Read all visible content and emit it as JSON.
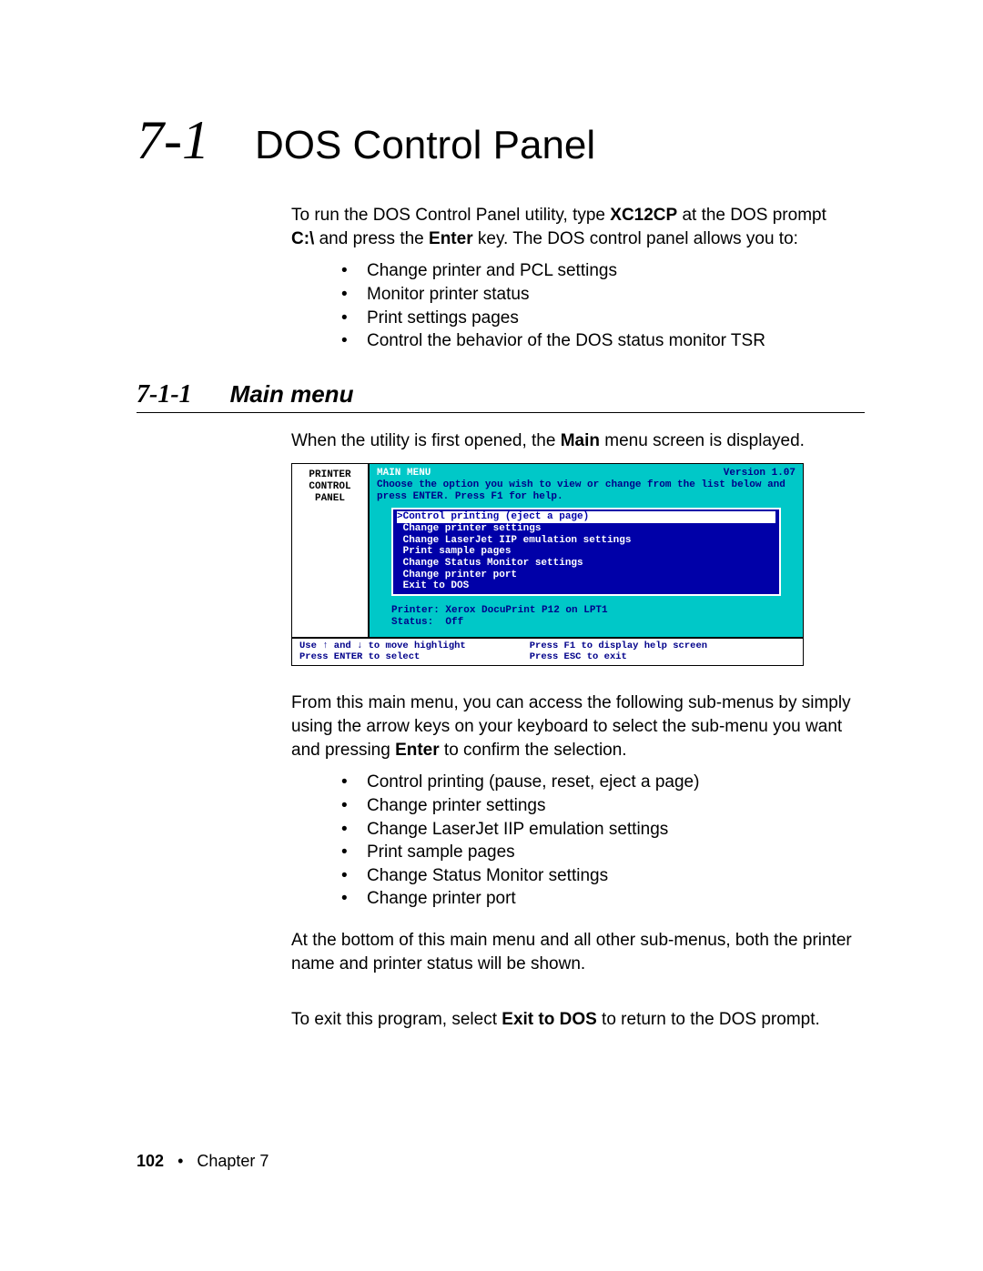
{
  "heading": {
    "num": "7-1",
    "title": "DOS Control Panel"
  },
  "intro": {
    "line1a": "To run the DOS Control Panel utility, type ",
    "line1b": "XC12CP",
    "line1c": " at the DOS prompt ",
    "line2a": "C:\\",
    "line2b": " and press the ",
    "line2c": "Enter",
    "line2d": " key. The DOS control panel allows you to:"
  },
  "bullets1": [
    "Change printer and PCL settings",
    "Monitor printer status",
    "Print settings pages",
    "Control the behavior of the DOS status monitor TSR"
  ],
  "subheading": {
    "num": "7-1-1",
    "title": "Main menu"
  },
  "para2a": "When the utility is first opened, the ",
  "para2b": "Main",
  "para2c": " menu screen is displayed.",
  "dos": {
    "side1": "PRINTER",
    "side2": "CONTROL",
    "side3": "PANEL",
    "title": "MAIN MENU",
    "version": "Version 1.07",
    "instr": "Choose the option you wish to view or change from the list below and press ENTER.  Press F1 for help.",
    "menu": [
      ">Control printing (eject a page)",
      " Change printer settings",
      " Change LaserJet IIP emulation settings",
      " Print sample pages",
      " Change Status Monitor settings",
      " Change printer port",
      " Exit to DOS"
    ],
    "printer_line": "Printer: Xerox DocuPrint P12 on LPT1",
    "status_line": "Status:  Off",
    "foot_left": "Use ↑ and ↓ to move highlight\nPress ENTER to select",
    "foot_right": "Press F1 to display help screen\nPress ESC to exit"
  },
  "para3a": "From this main menu, you can access the following sub-menus by simply using the arrow keys on your keyboard to select the sub-menu you want and pressing ",
  "para3b": "Enter",
  "para3c": " to confirm the selection.",
  "bullets2": [
    "Control printing (pause, reset, eject a page)",
    "Change printer settings",
    "Change LaserJet IIP emulation settings",
    "Print sample pages",
    "Change Status Monitor settings",
    "Change printer port"
  ],
  "para4": "At the bottom of this main menu and all other sub-menus, both the printer name and printer status will be shown.",
  "para5a": "To exit this program, select ",
  "para5b": "Exit to DOS",
  "para5c": " to return to the DOS prompt.",
  "footer": {
    "page": "102",
    "sep": "•",
    "chapter": "Chapter 7"
  },
  "colors": {
    "cyan": "#00c8c8",
    "blue": "#0000a8",
    "darkblue": "#00008a",
    "white": "#ffffff",
    "black": "#000000"
  }
}
